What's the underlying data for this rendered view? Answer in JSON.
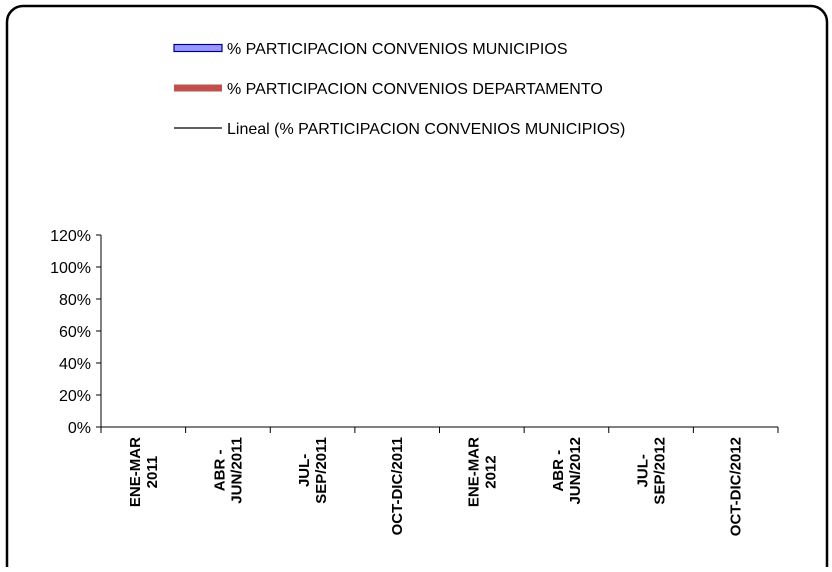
{
  "chart_data": {
    "type": "bar",
    "categories": [
      [
        "ENE-MAR",
        "2011"
      ],
      [
        "ABR -",
        "JUN/2011"
      ],
      [
        "JUL-",
        "SEP/2011"
      ],
      [
        "OCT-DIC/2011"
      ],
      [
        "ENE-MAR",
        "2012"
      ],
      [
        "ABR -",
        "JUN/2012"
      ],
      [
        "JUL-",
        "SEP/2012"
      ],
      [
        "OCT-DIC/2012"
      ]
    ],
    "series": [
      {
        "name": "% PARTICIPACION CONVENIOS MUNICIPIOS",
        "kind": "bar",
        "color": "#9999ff",
        "values": [
          null,
          null,
          null,
          null,
          null,
          null,
          null,
          null
        ]
      },
      {
        "name": "% PARTICIPACION CONVENIOS DEPARTAMENTO",
        "kind": "bar",
        "color": "#c0504d",
        "values": [
          null,
          null,
          null,
          null,
          null,
          null,
          null,
          null
        ]
      },
      {
        "name": "Lineal (% PARTICIPACION CONVENIOS MUNICIPIOS)",
        "kind": "trendline",
        "color": "#000000",
        "values": [
          null,
          null,
          null,
          null,
          null,
          null,
          null,
          null
        ]
      }
    ],
    "yticks": [
      "0%",
      "20%",
      "40%",
      "60%",
      "80%",
      "100%",
      "120%"
    ],
    "ylim": [
      0,
      1.2
    ],
    "legend_position": "top",
    "grid": false,
    "title": "",
    "xlabel": "",
    "ylabel": ""
  }
}
